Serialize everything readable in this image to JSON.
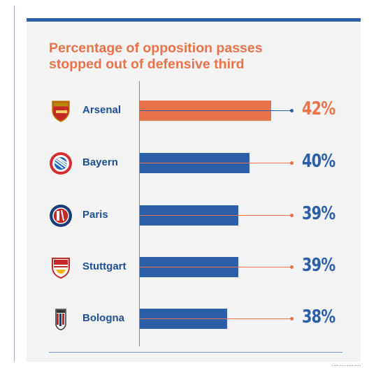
{
  "chart_data": {
    "type": "bar",
    "orientation": "horizontal",
    "title": "Percentage of opposition passes\nstopped out of defensive third",
    "categories": [
      "Arsenal",
      "Bayern",
      "Paris",
      "Stuttgart",
      "Bologna"
    ],
    "values": [
      42,
      40,
      39,
      39,
      38
    ],
    "value_labels": [
      "42%",
      "40%",
      "39%",
      "39%",
      "38%"
    ],
    "xlim": [
      30,
      43
    ],
    "colors": {
      "highlight": "#e8734b",
      "default": "#2b5fa6",
      "highlight_category": "Arsenal"
    }
  },
  "teams": [
    {
      "name": "Arsenal",
      "logo_icon": "arsenal-crest-icon"
    },
    {
      "name": "Bayern",
      "logo_icon": "bayern-crest-icon"
    },
    {
      "name": "Paris",
      "logo_icon": "psg-crest-icon"
    },
    {
      "name": "Stuttgart",
      "logo_icon": "stuttgart-crest-icon"
    },
    {
      "name": "Bologna",
      "logo_icon": "bologna-crest-icon"
    }
  ],
  "watermark": "…………"
}
